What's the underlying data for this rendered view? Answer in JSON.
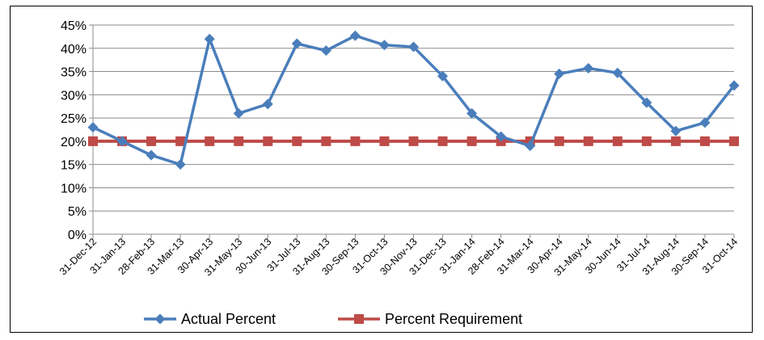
{
  "heading_text": "",
  "chart_data": {
    "type": "line",
    "title": "",
    "xlabel": "",
    "ylabel": "",
    "ylim": [
      0,
      45
    ],
    "y_ticks": [
      "0%",
      "5%",
      "10%",
      "15%",
      "20%",
      "25%",
      "30%",
      "35%",
      "40%",
      "45%"
    ],
    "y_unit": "%",
    "grid": true,
    "legend_position": "bottom",
    "categories": [
      "31-Dec-12",
      "31-Jan-13",
      "28-Feb-13",
      "31-Mar-13",
      "30-Apr-13",
      "31-May-13",
      "30-Jun-13",
      "31-Jul-13",
      "31-Aug-13",
      "30-Sep-13",
      "31-Oct-13",
      "30-Nov-13",
      "31-Dec-13",
      "31-Jan-14",
      "28-Feb-14",
      "31-Mar-14",
      "30-Apr-14",
      "31-May-14",
      "30-Jun-14",
      "31-Jul-14",
      "31-Aug-14",
      "30-Sep-14",
      "31-Oct-14"
    ],
    "series": [
      {
        "name": "Actual Percent",
        "color": "#4A7EBB",
        "marker": "diamond",
        "values": [
          23,
          20,
          17,
          15,
          42,
          26,
          28,
          41,
          39.5,
          42.7,
          40.7,
          40.3,
          34,
          26,
          21,
          19,
          34.5,
          35.7,
          34.7,
          28.3,
          22.2,
          24,
          32
        ]
      },
      {
        "name": "Percent Requirement",
        "color": "#BE4B48",
        "marker": "square",
        "values": [
          20,
          20,
          20,
          20,
          20,
          20,
          20,
          20,
          20,
          20,
          20,
          20,
          20,
          20,
          20,
          20,
          20,
          20,
          20,
          20,
          20,
          20,
          20
        ]
      }
    ]
  }
}
